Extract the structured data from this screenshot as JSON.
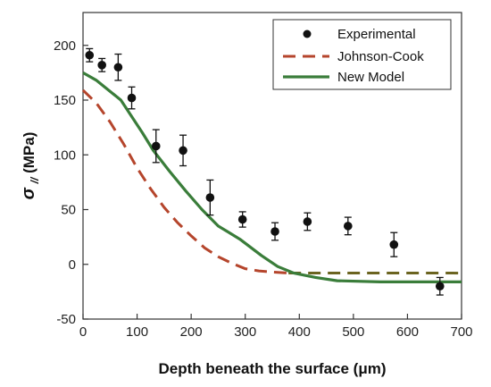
{
  "chart_data": {
    "type": "scatter",
    "xlabel": "Depth beneath the surface (μm)",
    "ylabel_main": "σ",
    "ylabel_sub": "//",
    "ylabel_unit": " (MPa)",
    "xlim": [
      0,
      700
    ],
    "ylim": [
      -50,
      230
    ],
    "xticks": [
      0,
      100,
      200,
      300,
      400,
      500,
      600,
      700
    ],
    "yticks": [
      -50,
      0,
      50,
      100,
      150,
      200
    ],
    "grid": false,
    "legend_position": "top-right",
    "series": [
      {
        "name": "Experimental",
        "kind": "points_with_errorbars",
        "color": "#111111",
        "points": [
          {
            "x": 12,
            "y": 191,
            "err": 6
          },
          {
            "x": 35,
            "y": 182,
            "err": 6
          },
          {
            "x": 65,
            "y": 180,
            "err": 12
          },
          {
            "x": 90,
            "y": 152,
            "err": 10
          },
          {
            "x": 135,
            "y": 108,
            "err": 15
          },
          {
            "x": 185,
            "y": 104,
            "err": 14
          },
          {
            "x": 235,
            "y": 61,
            "err": 16
          },
          {
            "x": 295,
            "y": 41,
            "err": 7
          },
          {
            "x": 355,
            "y": 30,
            "err": 8
          },
          {
            "x": 415,
            "y": 39,
            "err": 8
          },
          {
            "x": 490,
            "y": 35,
            "err": 8
          },
          {
            "x": 575,
            "y": 18,
            "err": 11
          },
          {
            "x": 660,
            "y": -20,
            "err": 8
          }
        ]
      },
      {
        "name": "Johnson-Cook",
        "kind": "dashed_line",
        "color": "#b5452c",
        "color_tail": "#6b6420",
        "points": [
          [
            0,
            159
          ],
          [
            25,
            147
          ],
          [
            50,
            130
          ],
          [
            75,
            110
          ],
          [
            100,
            88
          ],
          [
            125,
            69
          ],
          [
            150,
            52
          ],
          [
            175,
            38
          ],
          [
            200,
            26
          ],
          [
            225,
            15
          ],
          [
            250,
            7
          ],
          [
            275,
            1
          ],
          [
            300,
            -4
          ],
          [
            325,
            -6
          ],
          [
            350,
            -7
          ],
          [
            380,
            -8
          ],
          [
            700,
            -8
          ]
        ]
      },
      {
        "name": "New Model",
        "kind": "solid_line",
        "color": "#3a7d3a",
        "points": [
          [
            0,
            175
          ],
          [
            25,
            168
          ],
          [
            50,
            158
          ],
          [
            70,
            150
          ],
          [
            90,
            135
          ],
          [
            110,
            120
          ],
          [
            130,
            104
          ],
          [
            160,
            85
          ],
          [
            190,
            67
          ],
          [
            220,
            50
          ],
          [
            250,
            35
          ],
          [
            290,
            23
          ],
          [
            330,
            8
          ],
          [
            360,
            -2
          ],
          [
            390,
            -8
          ],
          [
            430,
            -12
          ],
          [
            470,
            -15
          ],
          [
            550,
            -16
          ],
          [
            700,
            -16
          ]
        ]
      }
    ]
  }
}
